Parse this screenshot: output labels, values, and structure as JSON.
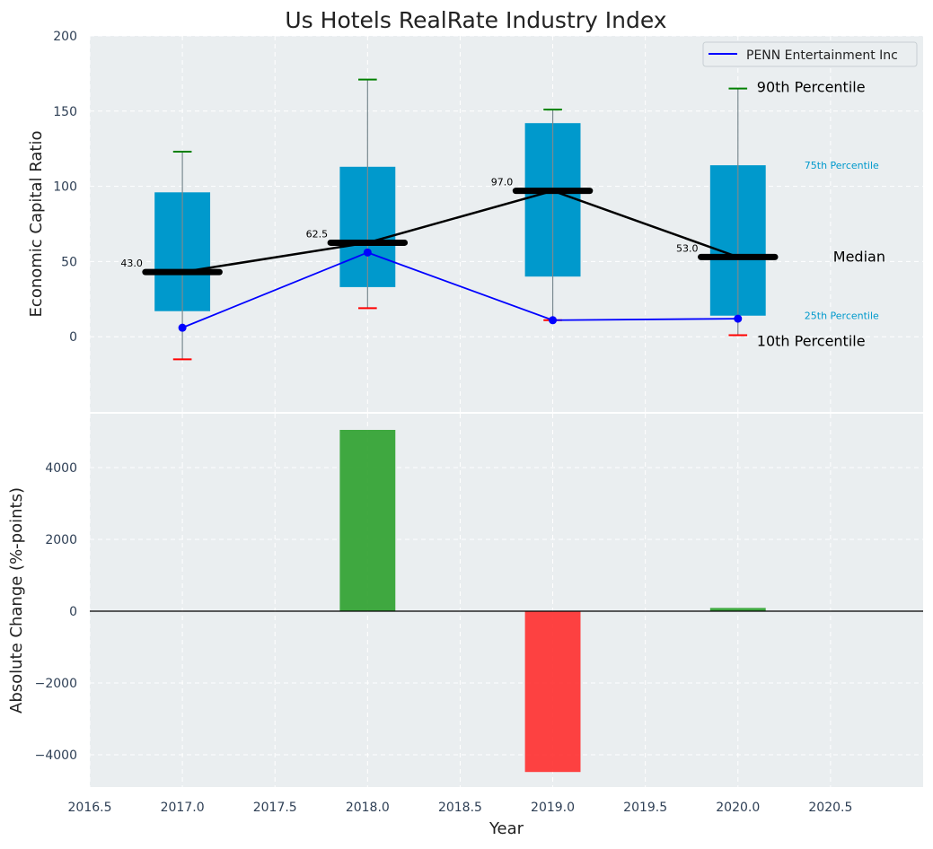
{
  "chart_data": [
    {
      "type": "box",
      "title": "Us Hotels RealRate Industry Index",
      "ylabel": "Economic Capital Ratio",
      "ylim": [
        -50,
        200
      ],
      "xlim": [
        2016.5,
        2021.0
      ],
      "yticks": [
        0,
        50,
        100,
        150,
        200
      ],
      "grid": true,
      "legend_position": "top-right",
      "boxes": [
        {
          "x": 2017,
          "p10": -15,
          "p25": 17,
          "median": 43.0,
          "p75": 96,
          "p90": 123,
          "median_label": "43.0"
        },
        {
          "x": 2018,
          "p10": 19,
          "p25": 33,
          "median": 62.5,
          "p75": 113,
          "p90": 171,
          "median_label": "62.5"
        },
        {
          "x": 2019,
          "p10": 11,
          "p25": 40,
          "median": 97.0,
          "p75": 142,
          "p90": 151,
          "median_label": "97.0"
        },
        {
          "x": 2020,
          "p10": 1,
          "p25": 14,
          "median": 53.0,
          "p75": 114,
          "p90": 165,
          "median_label": "53.0"
        }
      ],
      "series": [
        {
          "name": "PENN Entertainment Inc",
          "x": [
            2017,
            2018,
            2019,
            2020
          ],
          "values": [
            6,
            56,
            11,
            12
          ],
          "color": "#0000ff"
        }
      ],
      "annotations": {
        "p90": "90th Percentile",
        "p75": "75th Percentile",
        "median": "Median",
        "p25": "25th Percentile",
        "p10": "10th Percentile"
      },
      "colors": {
        "box": "#0099cc",
        "median": "#000000",
        "p90_cap": "#008000",
        "p10_cap": "#ff0000",
        "background": "#eaeef0"
      }
    },
    {
      "type": "bar",
      "xlabel": "Year",
      "ylabel": "Absolute Change (%-points)",
      "ylim": [
        -4900,
        5500
      ],
      "yticks": [
        -4000,
        -2000,
        0,
        2000,
        4000
      ],
      "xticks": [
        2016.5,
        2017.0,
        2017.5,
        2018.0,
        2018.5,
        2019.0,
        2019.5,
        2020.0,
        2020.5
      ],
      "grid": true,
      "x": [
        2018,
        2019,
        2020
      ],
      "values": [
        5050,
        -4480,
        90
      ],
      "colors": {
        "positive": "#2ca02c",
        "negative": "#ff2d2d"
      }
    }
  ]
}
